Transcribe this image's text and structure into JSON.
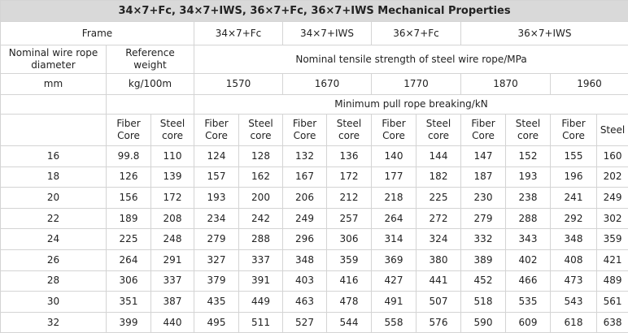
{
  "title": "34×7+Fc, 34×7+IWS, 36×7+Fc, 36×7+IWS Mechanical Properties",
  "frame_label": "Frame",
  "frames": [
    "34×7+Fc",
    "34×7+IWS",
    "36×7+Fc",
    "36×7+IWS"
  ],
  "diameter_label": "Nominal wire rope diameter",
  "weight_label": "Reference weight",
  "strength_label": "Nominal tensile strength of steel wire rope/MPa",
  "diameter_unit": "mm",
  "weight_unit": "kg/100m",
  "strengths": [
    "1570",
    "1670",
    "1770",
    "1870",
    "1960"
  ],
  "breaking_label": "Minimum pull rope breaking/kN",
  "core_headers": [
    "Fiber Core",
    "Steel core",
    "Fiber Core",
    "Steel core",
    "Fiber Core",
    "Steel core",
    "Fiber Core",
    "Steel core",
    "Fiber Core",
    "Steel core",
    "Fiber Core",
    "Steel"
  ],
  "rows": [
    [
      "16",
      "99.8",
      "110",
      "124",
      "128",
      "132",
      "136",
      "140",
      "144",
      "147",
      "152",
      "155",
      "160"
    ],
    [
      "18",
      "126",
      "139",
      "157",
      "162",
      "167",
      "172",
      "177",
      "182",
      "187",
      "193",
      "196",
      "202"
    ],
    [
      "20",
      "156",
      "172",
      "193",
      "200",
      "206",
      "212",
      "218",
      "225",
      "230",
      "238",
      "241",
      "249"
    ],
    [
      "22",
      "189",
      "208",
      "234",
      "242",
      "249",
      "257",
      "264",
      "272",
      "279",
      "288",
      "292",
      "302"
    ],
    [
      "24",
      "225",
      "248",
      "279",
      "288",
      "296",
      "306",
      "314",
      "324",
      "332",
      "343",
      "348",
      "359"
    ],
    [
      "26",
      "264",
      "291",
      "327",
      "337",
      "348",
      "359",
      "369",
      "380",
      "389",
      "402",
      "408",
      "421"
    ],
    [
      "28",
      "306",
      "337",
      "379",
      "391",
      "403",
      "416",
      "427",
      "441",
      "452",
      "466",
      "473",
      "489"
    ],
    [
      "30",
      "351",
      "387",
      "435",
      "449",
      "463",
      "478",
      "491",
      "507",
      "518",
      "535",
      "543",
      "561"
    ],
    [
      "32",
      "399",
      "440",
      "495",
      "511",
      "527",
      "544",
      "558",
      "576",
      "590",
      "609",
      "618",
      "638"
    ]
  ]
}
